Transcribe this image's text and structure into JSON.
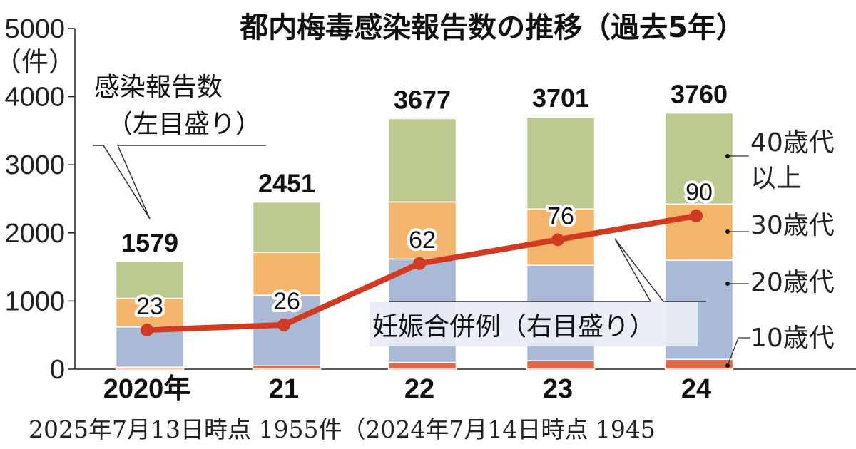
{
  "chart_data": {
    "type": "bar",
    "title": "都内梅毒感染報告数の推移（過去5年）",
    "categories": [
      "2020年",
      "21",
      "22",
      "23",
      "24"
    ],
    "stacked": true,
    "left_axis": {
      "unit": "（件）",
      "ylim": [
        0,
        5000
      ],
      "ticks": [
        "0",
        "1000",
        "2000",
        "3000",
        "4000",
        "5000"
      ]
    },
    "right_axis": {
      "ylim": [
        0,
        200
      ],
      "shown": false
    },
    "series": [
      {
        "name": "10歳代",
        "color": "#e0694a",
        "values": [
          30,
          50,
          100,
          125,
          145
        ]
      },
      {
        "name": "20歳代",
        "color": "#a9b9d6",
        "values": [
          590,
          1035,
          1517,
          1400,
          1454
        ]
      },
      {
        "name": "30歳代",
        "color": "#f3b46b",
        "values": [
          420,
          630,
          837,
          826,
          826
        ]
      },
      {
        "name": "40歳代以上",
        "color": "#bcc98f",
        "values": [
          539,
          736,
          1223,
          1350,
          1335
        ]
      }
    ],
    "series_labels": {
      "s40_line1": "40歳代",
      "s40_line2": "以上"
    },
    "totals": [
      "1579",
      "2451",
      "3677",
      "3701",
      "3760"
    ],
    "total_label": {
      "line1": "感染報告数",
      "line2": "（左目盛り）"
    },
    "line_series": {
      "name": "妊娠合併例（右目盛り）",
      "color": "#d33a22",
      "values": [
        23,
        26,
        62,
        76,
        90
      ],
      "labels": [
        "23",
        "26",
        "62",
        "76",
        "90"
      ]
    },
    "footnote": "2025年7月13日時点 1955件（2024年7月14日時点 1945"
  }
}
